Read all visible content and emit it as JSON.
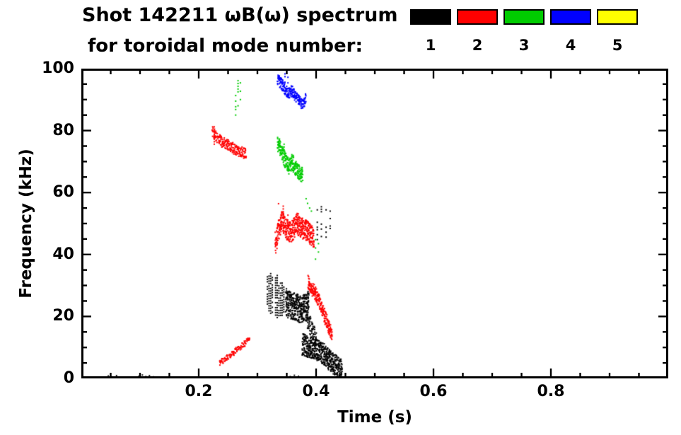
{
  "header": {
    "title_line1": "Shot 142211 ωB(ω) spectrum",
    "title_line2": "for toroidal mode number:",
    "legend": [
      {
        "label": "1",
        "color": "#000000"
      },
      {
        "label": "2",
        "color": "#ff0000"
      },
      {
        "label": "3",
        "color": "#00cc00"
      },
      {
        "label": "4",
        "color": "#0000ff"
      },
      {
        "label": "5",
        "color": "#ffff00"
      }
    ]
  },
  "chart_data": {
    "type": "scatter",
    "title": "Shot 142211 ωB(ω) spectrum for toroidal mode number: 1 2 3 4 5",
    "xlabel": "Time (s)",
    "ylabel": "Frequency (kHz)",
    "xlim": [
      0.0,
      1.0
    ],
    "ylim": [
      0,
      100
    ],
    "x_major_ticks": [
      0.2,
      0.4,
      0.6,
      0.8
    ],
    "x_tick_labels": [
      "0.2",
      "0.4",
      "0.6",
      "0.8"
    ],
    "x_minor_step": 0.05,
    "y_major_ticks": [
      0,
      20,
      40,
      60,
      80,
      100
    ],
    "y_tick_labels": [
      "0",
      "20",
      "40",
      "60",
      "80",
      "100"
    ],
    "y_minor_step": 5,
    "grid": false,
    "legend_position": "top-right",
    "series": [
      {
        "name": "n=1",
        "color": "#000000",
        "features": [
          {
            "kind": "dots",
            "points": [
              [
                0.046,
                0.8
              ],
              [
                0.052,
                0.5
              ],
              [
                0.06,
                0.9
              ],
              [
                0.098,
                0.7
              ],
              [
                0.104,
                1.1
              ],
              [
                0.11,
                0.6
              ],
              [
                0.116,
                0.9
              ],
              [
                0.123,
                0.5
              ],
              [
                0.356,
                0.6
              ],
              [
                0.363,
                1.0
              ],
              [
                0.37,
                0.7
              ]
            ]
          },
          {
            "kind": "striation",
            "path": [
              [
                0.317,
                28
              ],
              [
                0.324,
                27.5
              ],
              [
                0.331,
                26.5
              ],
              [
                0.338,
                26
              ],
              [
                0.346,
                25.5
              ]
            ],
            "width": 15,
            "col_step": 0.0028,
            "dot_step": 0.8,
            "prob": 0.8
          },
          {
            "kind": "band",
            "path": [
              [
                0.349,
                24.5
              ],
              [
                0.357,
                23.5
              ],
              [
                0.365,
                23
              ],
              [
                0.373,
                22.5
              ],
              [
                0.381,
                22.5
              ],
              [
                0.388,
                24
              ]
            ],
            "width": 9,
            "per": 16,
            "col_step": 0.0018
          },
          {
            "kind": "band",
            "path": [
              [
                0.384,
                20
              ],
              [
                0.39,
                17
              ],
              [
                0.396,
                14
              ],
              [
                0.401,
                12.5
              ]
            ],
            "width": 6,
            "per": 8,
            "col_step": 0.002
          },
          {
            "kind": "band",
            "path": [
              [
                0.377,
                11
              ],
              [
                0.388,
                10
              ],
              [
                0.398,
                9.5
              ],
              [
                0.408,
                8.5
              ],
              [
                0.418,
                7
              ],
              [
                0.428,
                5
              ],
              [
                0.437,
                3.5
              ],
              [
                0.444,
                2.5
              ]
            ],
            "width": 7,
            "per": 14,
            "col_step": 0.0018
          },
          {
            "kind": "vdash",
            "lines": [
              [
                0.402,
                44,
                57
              ],
              [
                0.409,
                45,
                56
              ],
              [
                0.417,
                44,
                55
              ],
              [
                0.424,
                46,
                54
              ]
            ],
            "prob": 0.5,
            "dot_step": 0.8
          }
        ]
      },
      {
        "name": "n=2",
        "color": "#ff0000",
        "features": [
          {
            "kind": "band",
            "path": [
              [
                0.224,
                79.5
              ],
              [
                0.231,
                78
              ],
              [
                0.239,
                76.5
              ],
              [
                0.248,
                75.5
              ],
              [
                0.257,
                74.5
              ],
              [
                0.266,
                73.5
              ],
              [
                0.274,
                73
              ],
              [
                0.28,
                72.5
              ]
            ],
            "width": 3.5,
            "per": 7,
            "col_step": 0.002
          },
          {
            "kind": "vdash",
            "lines": [
              [
                0.2265,
                74,
                81.5
              ]
            ],
            "prob": 0.7,
            "dot_step": 0.8
          },
          {
            "kind": "band",
            "path": [
              [
                0.236,
                5
              ],
              [
                0.247,
                6.5
              ],
              [
                0.258,
                8
              ],
              [
                0.269,
                10
              ],
              [
                0.28,
                11.5
              ],
              [
                0.287,
                13
              ]
            ],
            "width": 1.8,
            "per": 4,
            "col_step": 0.002
          },
          {
            "kind": "band",
            "path": [
              [
                0.331,
                44
              ],
              [
                0.337,
                48.5
              ],
              [
                0.343,
                51
              ],
              [
                0.349,
                48.5
              ],
              [
                0.355,
                47
              ],
              [
                0.361,
                48
              ],
              [
                0.367,
                50
              ],
              [
                0.373,
                49
              ],
              [
                0.379,
                48
              ],
              [
                0.385,
                47.5
              ],
              [
                0.391,
                46
              ],
              [
                0.397,
                44.5
              ]
            ],
            "width": 7,
            "per": 13,
            "col_step": 0.0018
          },
          {
            "kind": "vdash",
            "lines": [
              [
                0.336,
                51,
                57
              ],
              [
                0.344,
                52,
                56
              ],
              [
                0.352,
                50,
                55
              ]
            ],
            "prob": 0.45,
            "dot_step": 0.9
          },
          {
            "kind": "band",
            "path": [
              [
                0.387,
                31
              ],
              [
                0.393,
                29
              ],
              [
                0.399,
                27.5
              ],
              [
                0.405,
                25
              ],
              [
                0.411,
                22
              ],
              [
                0.417,
                19
              ],
              [
                0.423,
                16
              ],
              [
                0.428,
                13.5
              ]
            ],
            "width": 4.5,
            "per": 10,
            "col_step": 0.0018
          }
        ]
      },
      {
        "name": "n=3",
        "color": "#00cc00",
        "features": [
          {
            "kind": "vdash",
            "lines": [
              [
                0.263,
                85,
                92
              ],
              [
                0.267,
                88,
                97
              ],
              [
                0.271,
                90,
                96
              ]
            ],
            "prob": 0.5,
            "dot_step": 0.9
          },
          {
            "kind": "band",
            "path": [
              [
                0.335,
                75.5
              ],
              [
                0.341,
                73.5
              ],
              [
                0.347,
                70.5
              ],
              [
                0.353,
                68.5
              ],
              [
                0.359,
                70
              ],
              [
                0.365,
                68
              ],
              [
                0.371,
                66.5
              ],
              [
                0.377,
                65.5
              ]
            ],
            "width": 5,
            "per": 11,
            "col_step": 0.0018
          },
          {
            "kind": "vdash",
            "lines": [
              [
                0.3375,
                74,
                78.5
              ],
              [
                0.3455,
                72,
                76
              ]
            ],
            "prob": 0.5,
            "dot_step": 0.9
          },
          {
            "kind": "dots",
            "points": [
              [
                0.383,
                58
              ],
              [
                0.3855,
                56.5
              ],
              [
                0.389,
                55
              ],
              [
                0.392,
                54
              ]
            ]
          },
          {
            "kind": "vdash",
            "lines": [
              [
                0.399,
                38.5,
                45
              ],
              [
                0.404,
                39,
                44
              ]
            ],
            "prob": 0.5,
            "dot_step": 0.9
          }
        ]
      },
      {
        "name": "n=4",
        "color": "#0000ff",
        "features": [
          {
            "kind": "band",
            "path": [
              [
                0.335,
                96.5
              ],
              [
                0.341,
                95
              ],
              [
                0.347,
                93
              ],
              [
                0.353,
                92
              ],
              [
                0.359,
                93
              ],
              [
                0.365,
                91
              ],
              [
                0.371,
                89.5
              ],
              [
                0.377,
                88.5
              ],
              [
                0.383,
                90.5
              ]
            ],
            "width": 3.5,
            "per": 8,
            "col_step": 0.0018
          },
          {
            "kind": "vdash",
            "lines": [
              [
                0.347,
                92,
                100
              ],
              [
                0.352,
                90,
                99
              ]
            ],
            "prob": 0.5,
            "dot_step": 0.9
          }
        ]
      },
      {
        "name": "n=5",
        "color": "#ffff00",
        "features": []
      }
    ]
  }
}
